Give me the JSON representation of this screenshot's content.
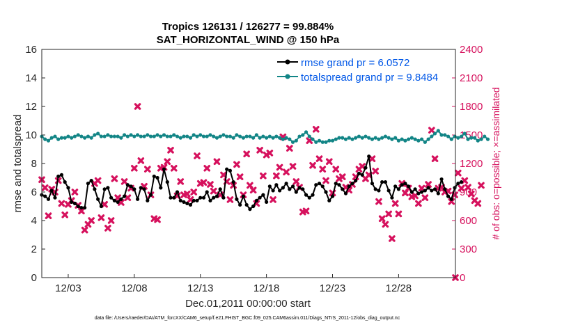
{
  "chart_data": {
    "type": "line",
    "title": "Tropics 126131 / 126277 = 99.884%",
    "subtitle": "SAT_HORIZONTAL_WIND @ 150 hPa",
    "xlabel": "Dec.01,2011 00:00:00 start",
    "ylabel": "rmse and totalspread",
    "y2label": "# of obs: o=possible; ×=assimilated",
    "xlim": [
      1,
      32.3
    ],
    "ylim": [
      0,
      16
    ],
    "y2lim": [
      0,
      2400
    ],
    "xticks": [
      3,
      8,
      13,
      18,
      23,
      28
    ],
    "xtick_labels": [
      "12/03",
      "12/08",
      "12/13",
      "12/18",
      "12/23",
      "12/28"
    ],
    "yticks": [
      0,
      2,
      4,
      6,
      8,
      10,
      12,
      14,
      16
    ],
    "y2ticks": [
      0,
      300,
      600,
      900,
      1200,
      1500,
      1800,
      2100,
      2400
    ],
    "footer": "data file: /Users/raeder/DAI/ATM_forcXX/CAM6_setup/f.e21.FHIST_BGC.f09_025.CAM6assim.011/Diags_NTrS_2011-12/obs_diag_output.nc",
    "legend_location": "top-right",
    "series": [
      {
        "name": "rmse grand pr = 6.0572",
        "color": "#000000",
        "marker": "dot",
        "t0": 1.0,
        "dt": 0.25,
        "values": [
          5.8,
          5.7,
          5.5,
          6.1,
          5.6,
          7.1,
          7.2,
          6.7,
          6.3,
          5.3,
          5.2,
          5.0,
          4.9,
          4.9,
          6.6,
          6.8,
          6.2,
          5.5,
          5.0,
          6.2,
          6.3,
          5.6,
          5.4,
          5.3,
          5.5,
          5.7,
          6.5,
          6.4,
          6.2,
          5.5,
          6.3,
          6.2,
          5.4,
          5.8,
          7.1,
          7.0,
          6.3,
          7.6,
          6.7,
          5.6,
          5.6,
          6.0,
          5.4,
          5.3,
          5.2,
          5.1,
          5.4,
          5.4,
          5.6,
          5.6,
          6.0,
          5.4,
          5.6,
          5.7,
          6.2,
          5.6,
          7.6,
          7.5,
          6.7,
          5.5,
          5.1,
          5.7,
          5.1,
          4.8,
          5.0,
          5.4,
          5.6,
          5.8,
          5.3,
          6.4,
          6.1,
          6.5,
          6.1,
          6.3,
          6.6,
          6.2,
          6.4,
          6.0,
          6.3,
          6.2,
          5.8,
          5.6,
          5.8,
          6.5,
          6.6,
          6.4,
          6.0,
          5.4,
          5.7,
          6.6,
          6.5,
          6.2,
          5.9,
          6.4,
          6.6,
          6.8,
          7.3,
          7.2,
          7.7,
          8.5,
          6.6,
          6.2,
          6.1,
          6.7,
          6.7,
          6.1,
          5.6,
          6.4,
          6.2,
          6.5,
          6.6,
          6.4,
          6.0,
          6.2,
          5.9,
          6.0,
          6.1,
          6.3,
          6.1,
          6.2,
          5.9,
          6.9,
          6.2,
          5.7,
          5.5,
          6.3,
          6.6,
          6.7
        ]
      },
      {
        "name": "totalspread grand pr = 9.8484",
        "color": "#128586",
        "marker": "dot",
        "t0": 1.0,
        "dt": 0.25,
        "values": [
          9.9,
          9.7,
          9.6,
          9.8,
          9.9,
          9.7,
          9.8,
          9.8,
          9.9,
          9.8,
          9.9,
          10.0,
          9.9,
          9.8,
          9.9,
          9.8,
          10.0,
          10.1,
          9.9,
          9.9,
          10.0,
          9.9,
          9.9,
          9.9,
          9.8,
          10.0,
          9.9,
          10.0,
          9.9,
          10.0,
          9.9,
          9.9,
          10.0,
          9.9,
          9.9,
          10.0,
          9.9,
          10.0,
          9.9,
          9.9,
          10.0,
          9.9,
          9.8,
          9.9,
          9.9,
          9.8,
          10.0,
          9.9,
          10.0,
          9.9,
          9.9,
          10.0,
          9.9,
          9.8,
          9.9,
          10.0,
          9.9,
          9.9,
          9.8,
          10.0,
          9.9,
          9.8,
          9.9,
          9.9,
          9.8,
          10.0,
          9.8,
          9.9,
          9.8,
          9.9,
          9.8,
          9.9,
          9.8,
          9.7,
          9.8,
          9.7,
          9.5,
          9.6,
          9.9,
          10.0,
          10.2,
          9.9,
          9.7,
          9.5,
          9.6,
          9.5,
          9.5,
          9.6,
          9.6,
          9.7,
          9.8,
          9.8,
          9.7,
          9.8,
          9.7,
          9.8,
          9.9,
          9.8,
          9.9,
          9.8,
          9.7,
          9.8,
          9.7,
          9.8,
          9.9,
          9.8,
          9.7,
          9.8,
          9.6,
          9.7,
          9.6,
          9.7,
          9.8,
          9.7,
          9.6,
          9.7,
          9.5,
          9.7,
          9.9,
          10.1,
          10.3,
          10.0,
          10.0,
          9.9,
          9.7,
          9.9,
          9.8,
          9.9,
          10.1,
          9.7,
          9.8,
          9.8,
          9.6,
          9.7,
          9.9,
          9.7
        ]
      },
      {
        "name": "obs assimilated",
        "color": "#d6115d",
        "marker": "x",
        "axis": "right",
        "t0": 1.0,
        "dt": 0.25,
        "values": [
          1030,
          945,
          650,
          930,
          900,
          1020,
          780,
          660,
          770,
          810,
          900,
          760,
          700,
          500,
          560,
          600,
          990,
          1020,
          630,
          770,
          520,
          600,
          1040,
          840,
          790,
          1010,
          840,
          940,
          1150,
          1800,
          1230,
          960,
          1140,
          870,
          620,
          610,
          1150,
          1160,
          1220,
          1340,
          1150,
          860,
          1010,
          870,
          880,
          820,
          900,
          1280,
          990,
          1000,
          1150,
          980,
          910,
          1220,
          870,
          1080,
          1010,
          820,
          970,
          1190,
          1060,
          870,
          1300,
          970,
          920,
          780,
          1340,
          1070,
          1290,
          1310,
          820,
          1070,
          1160,
          1480,
          1110,
          1360,
          1170,
          1010,
          950,
          690,
          700,
          1440,
          1180,
          1560,
          1250,
          1140,
          1020,
          1220,
          890,
          1140,
          1040,
          1060,
          950,
          920,
          980,
          1060,
          1140,
          1170,
          1040,
          1080,
          1250,
          1120,
          800,
          620,
          560,
          670,
          410,
          780,
          670,
          990,
          890,
          940,
          850,
          860,
          780,
          940,
          840,
          980,
          1550,
          1250,
          940,
          950,
          900,
          910,
          800,
          870,
          1100,
          940,
          1020,
          950,
          880,
          810,
          780,
          970
        ]
      }
    ]
  }
}
